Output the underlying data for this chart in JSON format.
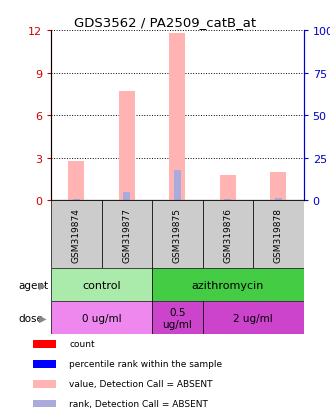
{
  "title": "GDS3562 / PA2509_catB_at",
  "samples": [
    "GSM319874",
    "GSM319877",
    "GSM319875",
    "GSM319876",
    "GSM319878"
  ],
  "pink_bar_heights": [
    2.8,
    7.7,
    11.8,
    1.8,
    2.0
  ],
  "blue_bar_heights": [
    0.12,
    0.55,
    2.1,
    0.12,
    0.18
  ],
  "pink_color": "#FFB3B3",
  "blue_color": "#AAAADD",
  "left_yticks": [
    0,
    3,
    6,
    9,
    12
  ],
  "right_yticks": [
    0,
    25,
    50,
    75,
    100
  ],
  "right_yticklabels": [
    "0",
    "25",
    "50",
    "75",
    "100%"
  ],
  "ymax": 12,
  "agent_groups": [
    {
      "label": "control",
      "span": [
        0,
        2
      ],
      "color": "#AAEAAA"
    },
    {
      "label": "azithromycin",
      "span": [
        2,
        5
      ],
      "color": "#44CC44"
    }
  ],
  "dose_groups": [
    {
      "label": "0 ug/ml",
      "span": [
        0,
        2
      ],
      "color": "#EE88EE"
    },
    {
      "label": "0.5\nug/ml",
      "span": [
        2,
        3
      ],
      "color": "#CC44CC"
    },
    {
      "label": "2 ug/ml",
      "span": [
        3,
        5
      ],
      "color": "#CC44CC"
    }
  ],
  "legend_items": [
    {
      "label": "count",
      "color": "#FF0000"
    },
    {
      "label": "percentile rank within the sample",
      "color": "#0000FF"
    },
    {
      "label": "value, Detection Call = ABSENT",
      "color": "#FFB3B3"
    },
    {
      "label": "rank, Detection Call = ABSENT",
      "color": "#AAAADD"
    }
  ],
  "left_axis_color": "#CC0000",
  "right_axis_color": "#0000CC",
  "sample_box_color": "#CCCCCC"
}
